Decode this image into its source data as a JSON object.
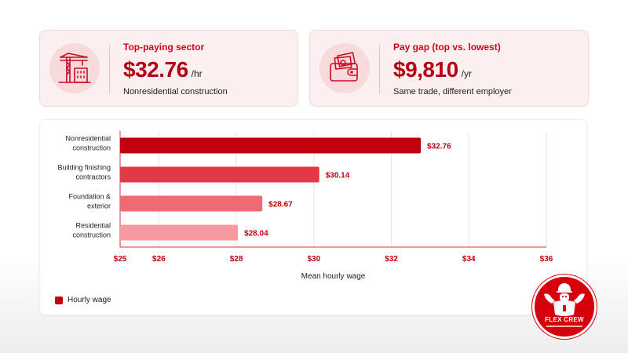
{
  "cards": {
    "sector": {
      "label": "Top-paying sector",
      "value": "$32.76",
      "unit": "/hr",
      "subtitle": "Nonresidential construction",
      "icon": "crane-building-icon"
    },
    "gap": {
      "label": "Pay gap (top vs. lowest)",
      "value": "$9,810",
      "unit": "/yr",
      "subtitle": "Same trade, different employer",
      "icon": "wallet-cash-icon"
    }
  },
  "chart_data": {
    "type": "bar",
    "orientation": "horizontal",
    "categories": [
      [
        "Nonresidential",
        "construction"
      ],
      [
        "Building finishing",
        "contractors"
      ],
      [
        "Foundation &",
        "exterior"
      ],
      [
        "Residential",
        "construction"
      ]
    ],
    "values": [
      32.76,
      30.14,
      28.67,
      28.04
    ],
    "value_labels": [
      "$32.76",
      "$30.14",
      "$28.67",
      "$28.04"
    ],
    "bar_colors": [
      "#c0000f",
      "#e23a45",
      "#f06a73",
      "#f79aa0"
    ],
    "xlim": [
      25,
      36
    ],
    "x_ticks": [
      25,
      26,
      28,
      30,
      32,
      34,
      36
    ],
    "x_tick_labels": [
      "$25",
      "$26",
      "$28",
      "$30",
      "$32",
      "$34",
      "$36"
    ],
    "xlabel": "Mean hourly wage",
    "legend": [
      {
        "name": "Hourly wage",
        "color": "#c0000f"
      }
    ],
    "grid": true,
    "legend_position": "bottom-left"
  },
  "badge": {
    "title": "FLEX CREW"
  },
  "colors": {
    "accent": "#d0021b",
    "accent_dark": "#b40012",
    "card_bg": "#fbeff0"
  }
}
